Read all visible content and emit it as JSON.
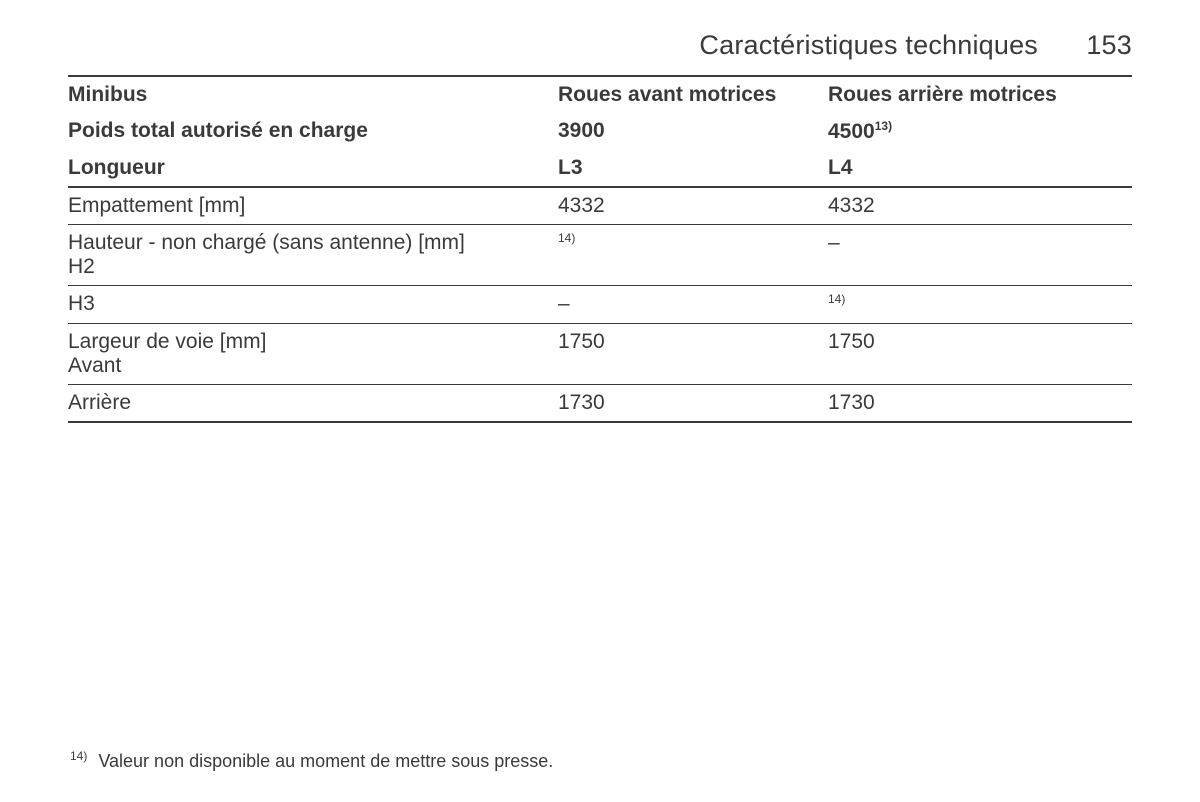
{
  "page": {
    "section_title": "Caractéristiques techniques",
    "number": "153"
  },
  "table": {
    "columns": {
      "label": "Minibus",
      "a": "Roues avant motrices",
      "b": "Roues arrière motrices"
    },
    "weight_row": {
      "label": "Poids total autorisé en charge",
      "a": "3900",
      "b": "4500",
      "b_fn": "13)"
    },
    "length_row": {
      "label": "Longueur",
      "a": "L3",
      "b": "L4"
    },
    "rows": [
      {
        "label": "Empattement [mm]",
        "a": "4332",
        "b": "4332",
        "a_fn": "",
        "b_fn": ""
      },
      {
        "label": "Hauteur - non chargé (sans antenne) [mm]",
        "sublabel": "H2",
        "a": "",
        "a_fn": "14)",
        "b": "‒",
        "b_fn": ""
      },
      {
        "label": "H3",
        "a": "‒",
        "a_fn": "",
        "b": "",
        "b_fn": "14)"
      },
      {
        "label": "Largeur de voie [mm]",
        "sublabel": "Avant",
        "a": "1750",
        "a_fn": "",
        "b": "1750",
        "b_fn": ""
      },
      {
        "label": "Arrière",
        "a": "1730",
        "a_fn": "",
        "b": "1730",
        "b_fn": ""
      }
    ]
  },
  "footnote": {
    "marker": "14)",
    "text": "Valeur non disponible au moment de mettre sous presse."
  },
  "style": {
    "text_color": "#3a3a3a",
    "background_color": "#ffffff",
    "header_fontsize": 27,
    "body_fontsize": 21,
    "footnote_fontsize": 18,
    "sup_fontsize": 12,
    "thick_rule": 2.5,
    "thin_rule": 1
  }
}
